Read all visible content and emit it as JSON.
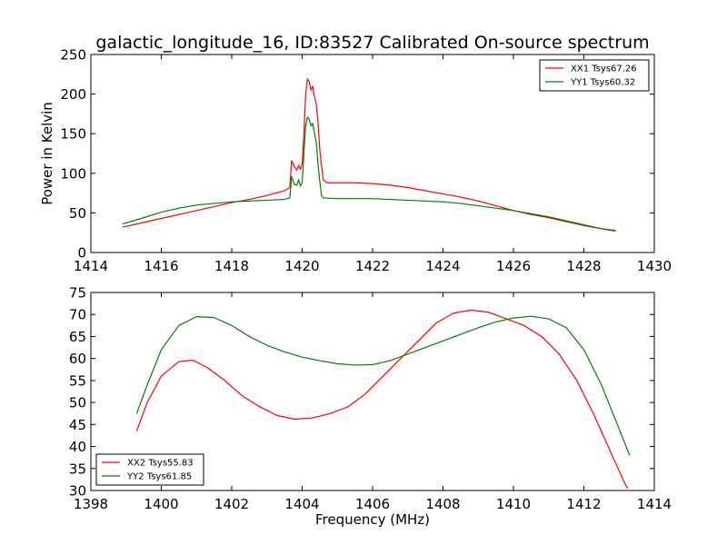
{
  "title": "galactic_longitude_16, ID:83527 Calibrated On-source spectrum",
  "chart_data": [
    {
      "type": "line",
      "ylabel": "Power in Kelvin",
      "xlabel": "",
      "xlim": [
        1414,
        1430
      ],
      "ylim": [
        0,
        250
      ],
      "x_ticks": [
        "1414",
        "1416",
        "1418",
        "1420",
        "1422",
        "1424",
        "1426",
        "1428",
        "1430"
      ],
      "y_ticks": [
        "0",
        "50",
        "100",
        "150",
        "200",
        "250"
      ],
      "legend_position": "top-right",
      "series": [
        {
          "name": "XX1 Tsys67.26",
          "color": "#ff0000",
          "points": [
            [
              1414.9,
              32
            ],
            [
              1415.5,
              38
            ],
            [
              1416.0,
              43
            ],
            [
              1416.5,
              48
            ],
            [
              1417.0,
              53
            ],
            [
              1417.5,
              58
            ],
            [
              1418.0,
              63
            ],
            [
              1418.5,
              67
            ],
            [
              1419.0,
              72
            ],
            [
              1419.5,
              78
            ],
            [
              1419.65,
              82
            ],
            [
              1419.7,
              116
            ],
            [
              1419.78,
              108
            ],
            [
              1419.85,
              104
            ],
            [
              1419.9,
              110
            ],
            [
              1419.95,
              105
            ],
            [
              1420.0,
              112
            ],
            [
              1420.05,
              150
            ],
            [
              1420.1,
              200
            ],
            [
              1420.15,
              219
            ],
            [
              1420.2,
              216
            ],
            [
              1420.25,
              205
            ],
            [
              1420.3,
              210
            ],
            [
              1420.35,
              196
            ],
            [
              1420.4,
              188
            ],
            [
              1420.45,
              165
            ],
            [
              1420.5,
              130
            ],
            [
              1420.55,
              110
            ],
            [
              1420.6,
              92
            ],
            [
              1420.7,
              88
            ],
            [
              1421.0,
              88
            ],
            [
              1421.5,
              88
            ],
            [
              1422.0,
              87
            ],
            [
              1422.5,
              85
            ],
            [
              1423.0,
              82
            ],
            [
              1423.5,
              78
            ],
            [
              1424.0,
              74
            ],
            [
              1424.5,
              70
            ],
            [
              1425.0,
              65
            ],
            [
              1425.5,
              59
            ],
            [
              1426.0,
              53
            ],
            [
              1426.5,
              48
            ],
            [
              1427.0,
              44
            ],
            [
              1427.5,
              39
            ],
            [
              1428.0,
              34
            ],
            [
              1428.5,
              30
            ],
            [
              1428.9,
              27
            ]
          ]
        },
        {
          "name": "YY1 Tsys60.32",
          "color": "#008000",
          "points": [
            [
              1414.9,
              36
            ],
            [
              1415.5,
              44
            ],
            [
              1416.0,
              51
            ],
            [
              1416.5,
              56
            ],
            [
              1417.0,
              60
            ],
            [
              1417.5,
              62
            ],
            [
              1418.0,
              64
            ],
            [
              1418.5,
              65
            ],
            [
              1419.0,
              66
            ],
            [
              1419.5,
              67
            ],
            [
              1419.65,
              69
            ],
            [
              1419.7,
              96
            ],
            [
              1419.78,
              86
            ],
            [
              1419.85,
              85
            ],
            [
              1419.9,
              92
            ],
            [
              1419.95,
              84
            ],
            [
              1420.0,
              88
            ],
            [
              1420.05,
              125
            ],
            [
              1420.1,
              160
            ],
            [
              1420.15,
              171
            ],
            [
              1420.2,
              168
            ],
            [
              1420.25,
              160
            ],
            [
              1420.3,
              163
            ],
            [
              1420.35,
              150
            ],
            [
              1420.4,
              140
            ],
            [
              1420.45,
              112
            ],
            [
              1420.5,
              90
            ],
            [
              1420.55,
              72
            ],
            [
              1420.6,
              69
            ],
            [
              1421.0,
              68
            ],
            [
              1421.5,
              68
            ],
            [
              1422.0,
              68
            ],
            [
              1422.5,
              67
            ],
            [
              1423.0,
              66
            ],
            [
              1423.5,
              65
            ],
            [
              1424.0,
              64
            ],
            [
              1424.5,
              62
            ],
            [
              1425.0,
              59
            ],
            [
              1425.5,
              56
            ],
            [
              1426.0,
              53
            ],
            [
              1426.5,
              49
            ],
            [
              1427.0,
              45
            ],
            [
              1427.5,
              40
            ],
            [
              1428.0,
              35
            ],
            [
              1428.5,
              30
            ],
            [
              1428.9,
              28
            ]
          ]
        }
      ]
    },
    {
      "type": "line",
      "ylabel": "",
      "xlabel": "Frequency (MHz)",
      "xlim": [
        1398,
        1414
      ],
      "ylim": [
        30,
        75
      ],
      "x_ticks": [
        "1398",
        "1400",
        "1402",
        "1404",
        "1406",
        "1408",
        "1410",
        "1412",
        "1414"
      ],
      "y_ticks": [
        "30",
        "35",
        "40",
        "45",
        "50",
        "55",
        "60",
        "65",
        "70",
        "75"
      ],
      "legend_position": "bottom-left",
      "series": [
        {
          "name": "XX2 Tsys55.83",
          "color": "#ff0000",
          "points": [
            [
              1399.3,
              43.5
            ],
            [
              1399.6,
              50
            ],
            [
              1400.0,
              56
            ],
            [
              1400.5,
              59.3
            ],
            [
              1400.9,
              59.6
            ],
            [
              1401.3,
              58
            ],
            [
              1401.8,
              55
            ],
            [
              1402.3,
              51.5
            ],
            [
              1402.8,
              49
            ],
            [
              1403.3,
              47
            ],
            [
              1403.8,
              46.2
            ],
            [
              1404.3,
              46.5
            ],
            [
              1404.8,
              47.5
            ],
            [
              1405.3,
              49
            ],
            [
              1405.8,
              52
            ],
            [
              1406.3,
              56
            ],
            [
              1406.8,
              60
            ],
            [
              1407.3,
              64
            ],
            [
              1407.8,
              68
            ],
            [
              1408.3,
              70.3
            ],
            [
              1408.8,
              71
            ],
            [
              1409.3,
              70.5
            ],
            [
              1409.8,
              69
            ],
            [
              1410.3,
              67.5
            ],
            [
              1410.8,
              65
            ],
            [
              1411.3,
              61
            ],
            [
              1411.8,
              55
            ],
            [
              1412.3,
              47
            ],
            [
              1412.8,
              38
            ],
            [
              1413.2,
              31
            ],
            [
              1413.25,
              30.5
            ]
          ]
        },
        {
          "name": "YY2 Tsys61.85",
          "color": "#008000",
          "points": [
            [
              1399.3,
              47.5
            ],
            [
              1399.6,
              54
            ],
            [
              1400.0,
              62
            ],
            [
              1400.5,
              67.5
            ],
            [
              1401.0,
              69.5
            ],
            [
              1401.5,
              69.3
            ],
            [
              1402.0,
              67.5
            ],
            [
              1402.5,
              65
            ],
            [
              1403.0,
              63
            ],
            [
              1403.5,
              61.5
            ],
            [
              1404.0,
              60.3
            ],
            [
              1404.5,
              59.5
            ],
            [
              1405.0,
              58.8
            ],
            [
              1405.5,
              58.5
            ],
            [
              1406.0,
              58.6
            ],
            [
              1406.5,
              59.5
            ],
            [
              1407.0,
              61
            ],
            [
              1407.5,
              62.5
            ],
            [
              1408.0,
              64
            ],
            [
              1408.5,
              65.5
            ],
            [
              1409.0,
              67
            ],
            [
              1409.5,
              68.3
            ],
            [
              1410.0,
              69.2
            ],
            [
              1410.5,
              69.6
            ],
            [
              1411.0,
              69
            ],
            [
              1411.5,
              67
            ],
            [
              1412.0,
              62
            ],
            [
              1412.5,
              54
            ],
            [
              1413.0,
              44
            ],
            [
              1413.3,
              38
            ]
          ]
        }
      ]
    }
  ]
}
